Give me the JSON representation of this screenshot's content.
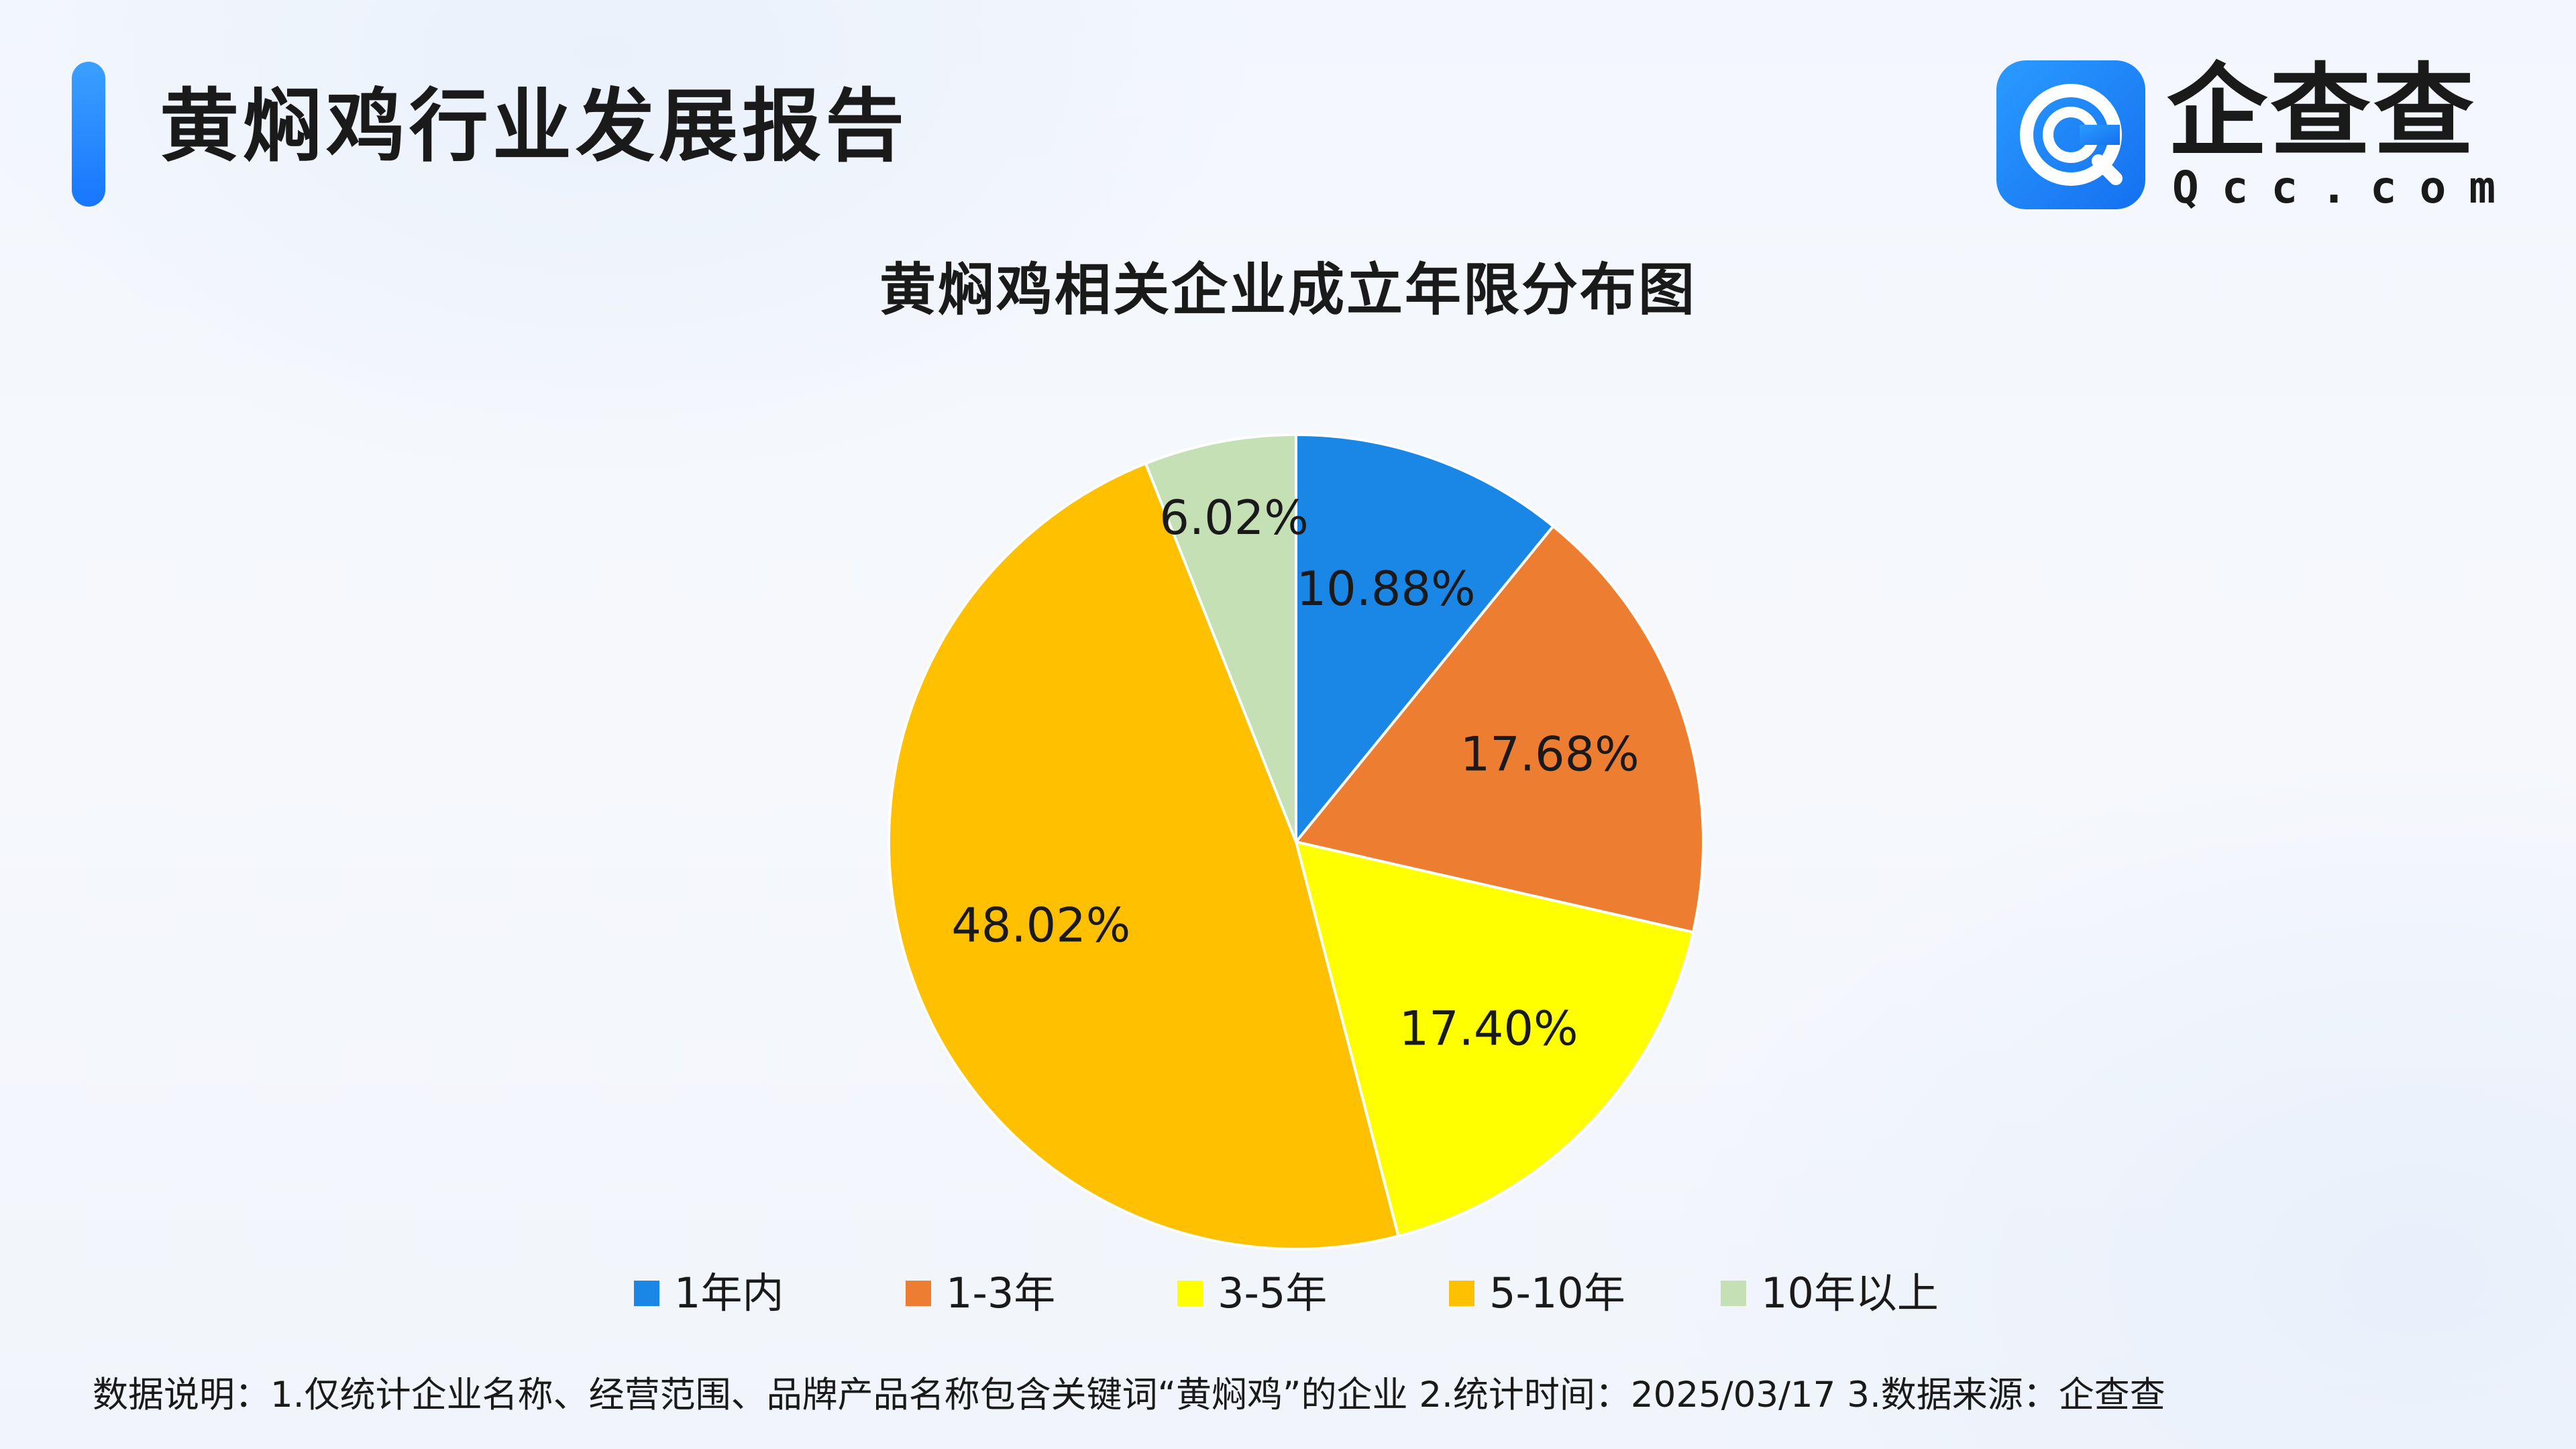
{
  "header": {
    "report_title": "黄焖鸡行业发展报告",
    "logo_name": "企查查",
    "logo_domain": "Qcc.com",
    "logo_icon": "qcc-logo-icon"
  },
  "colors": {
    "accent": "#1677ff",
    "series": [
      "#1a87e6",
      "#ed7d31",
      "#ffff00",
      "#ffc000",
      "#c5e0b4"
    ]
  },
  "chart_data": {
    "type": "pie",
    "title": "黄焖鸡相关企业成立年限分布图",
    "categories": [
      "1年内",
      "1-3年",
      "3-5年",
      "5-10年",
      "10年以上"
    ],
    "values": [
      10.88,
      17.68,
      17.4,
      48.02,
      6.02
    ],
    "labels": [
      "10.88%",
      "17.68%",
      "17.40%",
      "48.02%",
      "6.02%"
    ],
    "start_angle": "12 o'clock",
    "direction": "clockwise",
    "legend_position": "bottom"
  },
  "footnote": "数据说明：1.仅统计企业名称、经营范围、品牌产品名称包含关键词“黄焖鸡”的企业   2.统计时间：2025/03/17    3.数据来源：企查查"
}
